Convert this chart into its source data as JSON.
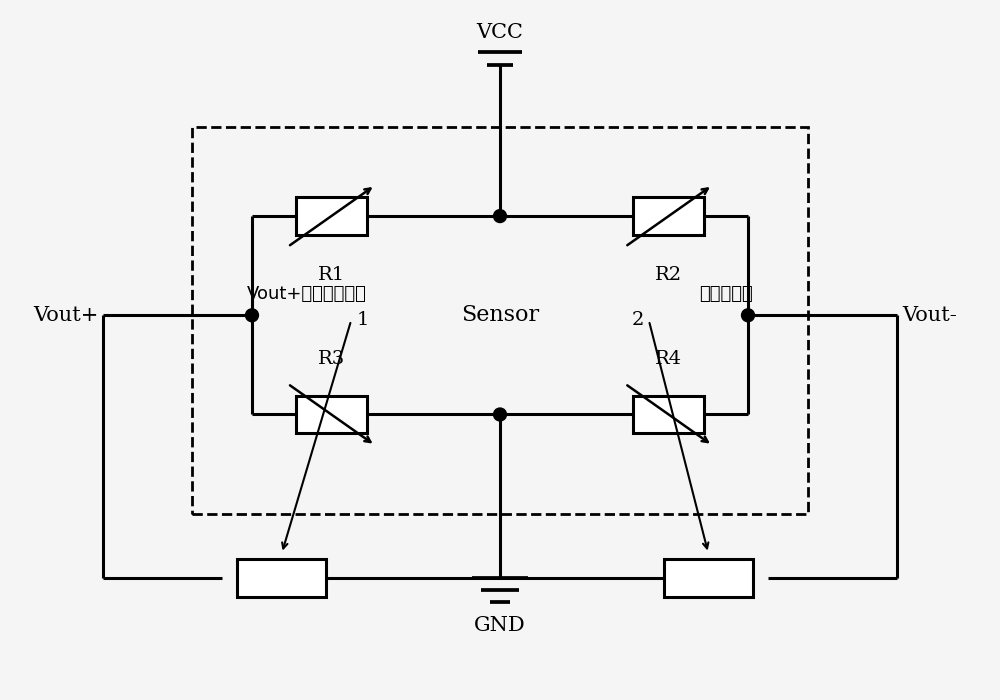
{
  "background_color": "#f5f5f5",
  "title": "",
  "vcc_label": "VCC",
  "gnd_label": "GND",
  "vout_plus_label": "Vout+",
  "vout_minus_label": "Vout-",
  "sensor_label": "Sensor",
  "r1_label": "R1",
  "r2_label": "R2",
  "r3_label": "R3",
  "r4_label": "R4",
  "label1": "1",
  "label2": "2",
  "zero_res_label": "Vout+零点调试电阻",
  "pos_res_label": "正预调电阻",
  "line_color": "#000000",
  "dashed_color": "#000000",
  "font_size": 14,
  "chinese_font_size": 13
}
